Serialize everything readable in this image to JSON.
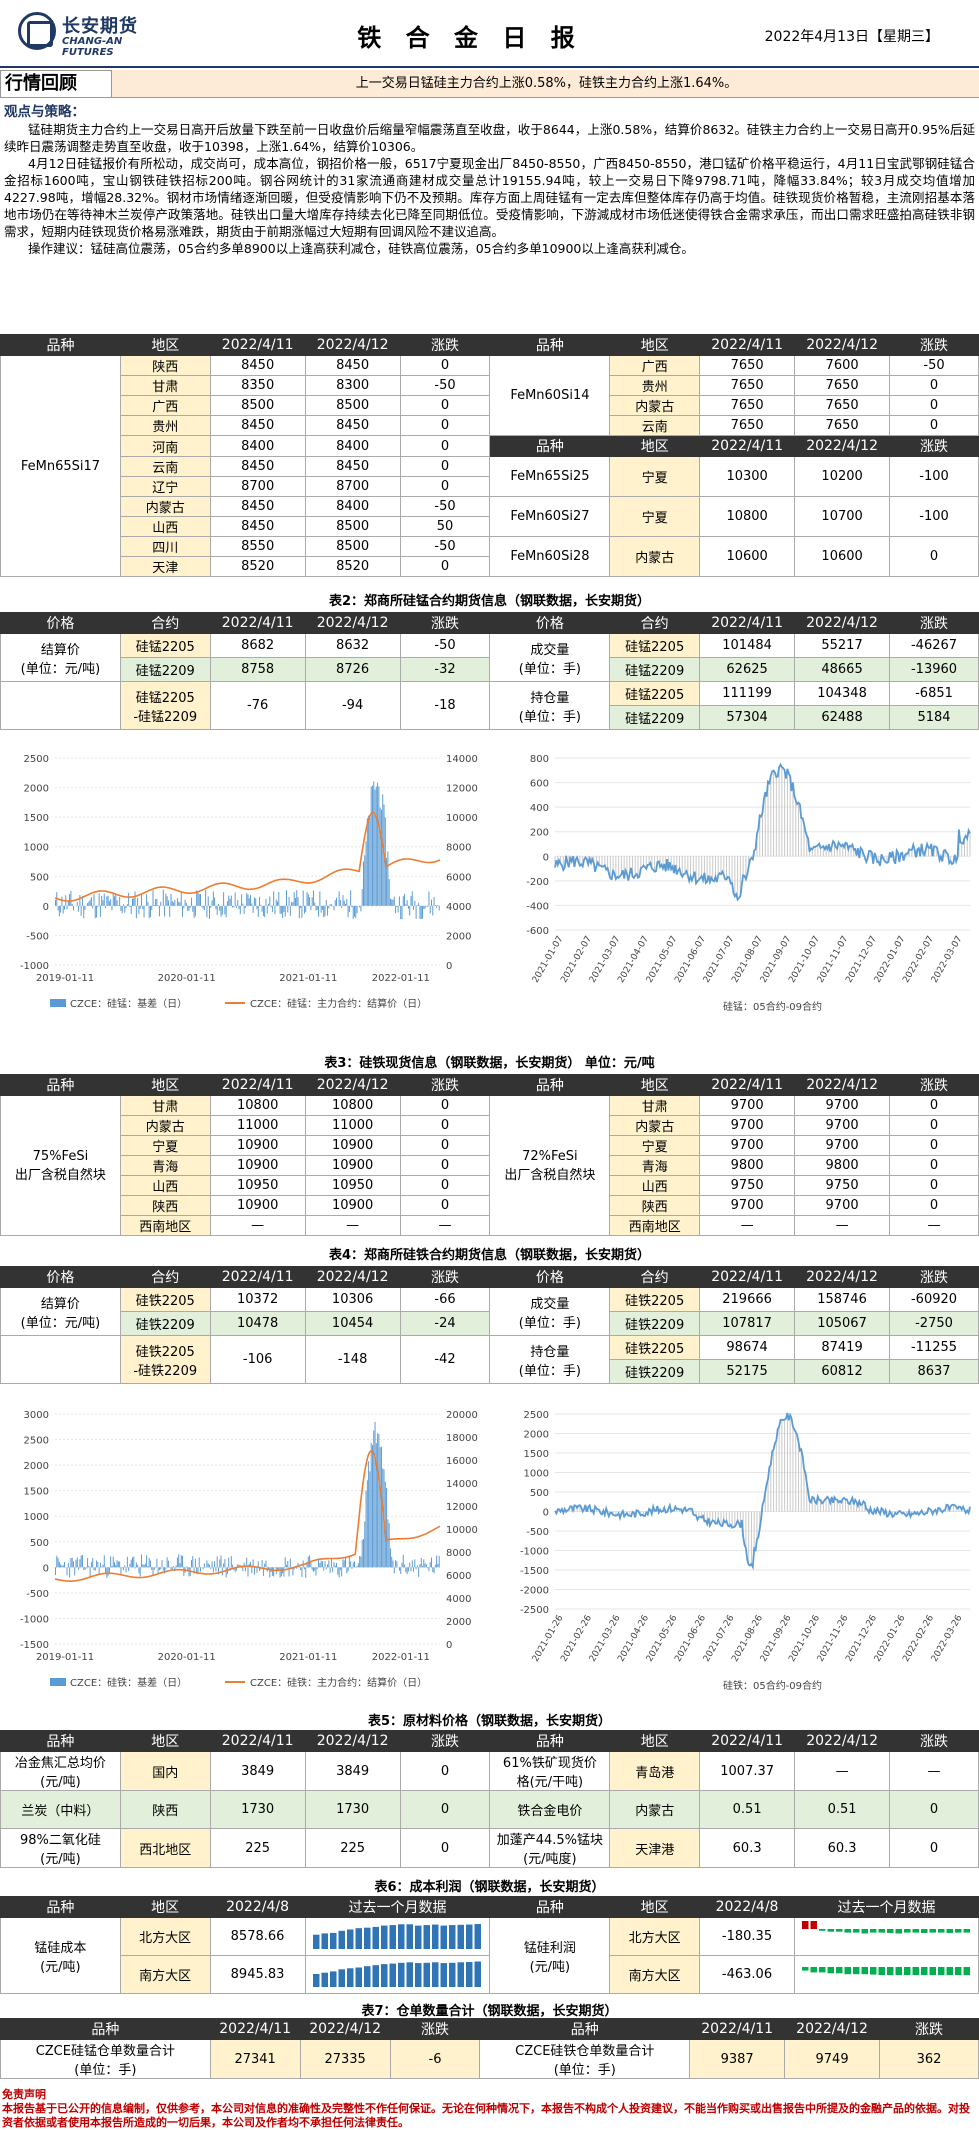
{
  "header": {
    "company_cn": "长安期货",
    "company_en": "CHANG-AN FUTURES",
    "title": "铁 合 金 日 报",
    "date": "2022年4月13日【星期三】"
  },
  "review": {
    "label": "行情回顾",
    "text": "上一交易日锰硅主力合约上涨0.58%，硅铁主力合约上涨1.64%。"
  },
  "strategy": {
    "title": "观点与策略：",
    "p1": "锰硅期货主力合约上一交易日高开后放量下跌至前一日收盘价后缩量窄幅震荡直至收盘，收于8644，上涨0.58%，结算价8632。硅铁主力合约上一交易日高开0.95%后延续昨日震荡调整走势直至收盘，收于10398，上涨1.64%，结算价10306。",
    "p2": "4月12日硅锰报价有所松动，成交尚可，成本高位，钢招价格一般，6517宁夏现金出厂8450-8550，广西8450-8550，港口锰矿价格平稳运行，4月11日宝武鄂钢硅锰合金招标1600吨，宝山钢铁硅铁招标200吨。钢谷网统计的31家流通商建材成交量总计19155.94吨，较上一交易日下降9798.71吨，降幅33.84%；较3月成交均值增加4227.98吨，增幅28.32%。钢材市场情绪逐渐回暖，但受疫情影响下仍不及预期。库存方面上周硅锰有一定去库但整体库存仍高于均值。硅铁现货价格暂稳，主流刚招基本落地市场仍在等待神木兰炭停产政策落地。硅铁出口量大增库存持续去化已降至同期低位。受疫情影响，下游減成材市场低迷使得铁合金需求承压，而出口需求旺盛拍高硅铁非钢需求，短期内硅铁现货价格易涨难跌，期货由于前期涨幅过大短期有回调风险不建议追高。",
    "p3": "操作建议：锰硅高位震荡，05合约多单8900以上逢高获利减仓，硅铁高位震荡，05合约多单10900以上逢高获利减仓。"
  },
  "table1": {
    "headers": [
      "品种",
      "地区",
      "2022/4/11",
      "2022/4/12",
      "涨跌",
      "品种",
      "地区",
      "2022/4/11",
      "2022/4/12",
      "涨跌"
    ],
    "left_product": "FeMn65Si17",
    "left_rows": [
      [
        "陕西",
        "8450",
        "8450",
        "0"
      ],
      [
        "甘肃",
        "8350",
        "8300",
        "-50"
      ],
      [
        "广西",
        "8500",
        "8500",
        "0"
      ],
      [
        "贵州",
        "8450",
        "8450",
        "0"
      ],
      [
        "河南",
        "8400",
        "8400",
        "0"
      ],
      [
        "云南",
        "8450",
        "8450",
        "0"
      ],
      [
        "辽宁",
        "8700",
        "8700",
        "0"
      ],
      [
        "内蒙古",
        "8450",
        "8400",
        "-50"
      ],
      [
        "山西",
        "8450",
        "8500",
        "50"
      ],
      [
        "四川",
        "8550",
        "8500",
        "-50"
      ],
      [
        "天津",
        "8520",
        "8520",
        "0"
      ]
    ],
    "right_product1": "FeMn60Si14",
    "right_rows1": [
      [
        "广西",
        "7650",
        "7600",
        "-50"
      ],
      [
        "贵州",
        "7650",
        "7650",
        "0"
      ],
      [
        "内蒙古",
        "7650",
        "7650",
        "0"
      ],
      [
        "云南",
        "7650",
        "7650",
        "0"
      ]
    ],
    "right_rows2": [
      [
        "FeMn65Si25",
        "宁夏",
        "10300",
        "10200",
        "-100"
      ],
      [
        "FeMn60Si27",
        "宁夏",
        "10800",
        "10700",
        "-100"
      ],
      [
        "FeMn60Si28",
        "内蒙古",
        "10600",
        "10600",
        "0"
      ]
    ]
  },
  "table2": {
    "title": "表2：郑商所硅锰合约期货信息（钢联数据，长安期货）",
    "headers": [
      "价格",
      "合约",
      "2022/4/11",
      "2022/4/12",
      "涨跌",
      "价格",
      "合约",
      "2022/4/11",
      "2022/4/12",
      "涨跌"
    ],
    "settle_label": "结算价\n(单位：元/吨)",
    "settle_rows": [
      [
        "硅锰2205",
        "8682",
        "8632",
        "-50"
      ],
      [
        "硅锰2209",
        "8758",
        "8726",
        "-32"
      ],
      [
        "硅锰2205\n-硅锰2209",
        "-76",
        "-94",
        "-18"
      ]
    ],
    "vol_label": "成交量\n(单位：手)",
    "vol_rows": [
      [
        "硅锰2205",
        "101484",
        "55217",
        "-46267"
      ],
      [
        "硅锰2209",
        "62625",
        "48665",
        "-13960"
      ]
    ],
    "oi_label": "持仓量\n(单位：手)",
    "oi_rows": [
      [
        "硅锰2205",
        "111199",
        "104348",
        "-6851"
      ],
      [
        "硅锰2209",
        "57304",
        "62488",
        "5184"
      ]
    ]
  },
  "chart1": {
    "left_yticks": [
      "2500",
      "2000",
      "1500",
      "1000",
      "500",
      "0",
      "-500",
      "-1000"
    ],
    "right_yticks": [
      "14000",
      "12000",
      "10000",
      "8000",
      "6000",
      "4000",
      "2000",
      "0"
    ],
    "xticks": [
      "2019-01-11",
      "2020-01-11",
      "2021-01-11",
      "2022-01-11"
    ],
    "legend1": "CZCE：硅锰：基差（日）",
    "legend2": "CZCE：硅锰：主力合约：结算价（日）"
  },
  "chart2": {
    "yticks": [
      "800",
      "600",
      "400",
      "200",
      "0",
      "-200",
      "-400",
      "-600"
    ],
    "xticks": [
      "2021-01-07",
      "2021-02-07",
      "2021-03-07",
      "2021-04-07",
      "2021-05-07",
      "2021-06-07",
      "2021-07-07",
      "2021-08-07",
      "2021-09-07",
      "2021-10-07",
      "2021-11-07",
      "2021-12-07",
      "2022-01-07",
      "2022-02-07",
      "2022-03-07"
    ],
    "caption": "硅锰：05合约-09合约"
  },
  "table3": {
    "title": "表3：硅铁现货信息（钢联数据，长安期货）  单位：元/吨",
    "headers": [
      "品种",
      "地区",
      "2022/4/11",
      "2022/4/12",
      "涨跌",
      "品种",
      "地区",
      "2022/4/11",
      "2022/4/12",
      "涨跌"
    ],
    "left_product": "75%FeSi\n出厂含税自然块",
    "left_rows": [
      [
        "甘肃",
        "10800",
        "10800",
        "0"
      ],
      [
        "内蒙古",
        "11000",
        "11000",
        "0"
      ],
      [
        "宁夏",
        "10900",
        "10900",
        "0"
      ],
      [
        "青海",
        "10900",
        "10900",
        "0"
      ],
      [
        "山西",
        "10950",
        "10950",
        "0"
      ],
      [
        "陕西",
        "10900",
        "10900",
        "0"
      ],
      [
        "西南地区",
        "—",
        "—",
        "—"
      ]
    ],
    "right_product": "72%FeSi\n出厂含税自然块",
    "right_rows": [
      [
        "甘肃",
        "9700",
        "9700",
        "0"
      ],
      [
        "内蒙古",
        "9700",
        "9700",
        "0"
      ],
      [
        "宁夏",
        "9700",
        "9700",
        "0"
      ],
      [
        "青海",
        "9800",
        "9800",
        "0"
      ],
      [
        "山西",
        "9750",
        "9750",
        "0"
      ],
      [
        "陕西",
        "9700",
        "9700",
        "0"
      ],
      [
        "西南地区",
        "—",
        "—",
        "—"
      ]
    ]
  },
  "table4": {
    "title": "表4：郑商所硅铁合约期货信息（钢联数据，长安期货）",
    "headers": [
      "价格",
      "合约",
      "2022/4/11",
      "2022/4/12",
      "涨跌",
      "价格",
      "合约",
      "2022/4/11",
      "2022/4/12",
      "涨跌"
    ],
    "settle_label": "结算价\n(单位：元/吨)",
    "settle_rows": [
      [
        "硅铁2205",
        "10372",
        "10306",
        "-66"
      ],
      [
        "硅铁2209",
        "10478",
        "10454",
        "-24"
      ],
      [
        "硅铁2205\n-硅铁2209",
        "-106",
        "-148",
        "-42"
      ]
    ],
    "vol_label": "成交量\n(单位：手)",
    "vol_rows": [
      [
        "硅铁2205",
        "219666",
        "158746",
        "-60920"
      ],
      [
        "硅铁2209",
        "107817",
        "105067",
        "-2750"
      ]
    ],
    "oi_label": "持仓量\n(单位：手)",
    "oi_rows": [
      [
        "硅铁2205",
        "98674",
        "87419",
        "-11255"
      ],
      [
        "硅铁2209",
        "52175",
        "60812",
        "8637"
      ]
    ]
  },
  "chart3": {
    "left_yticks": [
      "3000",
      "2500",
      "2000",
      "1500",
      "1000",
      "500",
      "0",
      "-500",
      "-1000",
      "-1500"
    ],
    "right_yticks": [
      "20000",
      "18000",
      "16000",
      "14000",
      "12000",
      "10000",
      "8000",
      "6000",
      "4000",
      "2000",
      "0"
    ],
    "xticks": [
      "2019-01-11",
      "2020-01-11",
      "2021-01-11",
      "2022-01-11"
    ],
    "legend1": "CZCE：硅铁：基差（日）",
    "legend2": "CZCE：硅铁：主力合约：结算价（日）"
  },
  "chart4": {
    "yticks": [
      "2500",
      "2000",
      "1500",
      "1000",
      "500",
      "0",
      "-500",
      "-1000",
      "-1500",
      "-2000",
      "-2500"
    ],
    "xticks": [
      "2021-01-26",
      "2021-02-26",
      "2021-03-26",
      "2021-04-26",
      "2021-05-26",
      "2021-06-26",
      "2021-07-26",
      "2021-08-26",
      "2021-09-26",
      "2021-10-26",
      "2021-11-26",
      "2021-12-26",
      "2022-01-26",
      "2022-02-26",
      "2022-03-26"
    ],
    "caption": "硅铁：05合约-09合约"
  },
  "table5": {
    "title": "表5：原材料价格（钢联数据，长安期货）",
    "headers": [
      "品种",
      "地区",
      "2022/4/11",
      "2022/4/12",
      "涨跌",
      "品种",
      "地区",
      "2022/4/11",
      "2022/4/12",
      "涨跌"
    ],
    "rows": [
      [
        "冶金焦汇总均价\n(元/吨)",
        "国内",
        "3849",
        "3849",
        "0",
        "61%铁矿现货价\n格(元/干吨)",
        "青岛港",
        "1007.37",
        "—",
        "—"
      ],
      [
        "兰炭（中料）",
        "陕西",
        "1730",
        "1730",
        "0",
        "铁合金电价",
        "内蒙古",
        "0.51",
        "0.51",
        "0"
      ],
      [
        "98%二氧化硅\n(元/吨)",
        "西北地区",
        "225",
        "225",
        "0",
        "加蓬产44.5%锰块\n(元/吨度)",
        "天津港",
        "60.3",
        "60.3",
        "0"
      ]
    ]
  },
  "table6": {
    "title": "表6：成本利润（钢联数据，长安期货）",
    "headers": [
      "品种",
      "地区",
      "2022/4/8",
      "过去一个月数据",
      "品种",
      "地区",
      "2022/4/8",
      "过去一个月数据"
    ],
    "cost_label": "锰硅成本\n(元/吨)",
    "cost_rows": [
      [
        "北方大区",
        "8578.66"
      ],
      [
        "南方大区",
        "8945.83"
      ]
    ],
    "profit_label": "锰硅利润\n(元/吨)",
    "profit_rows": [
      [
        "北方大区",
        "-180.35"
      ],
      [
        "南方大区",
        "-463.06"
      ]
    ]
  },
  "table7": {
    "title": "表7：仓单数量合计（钢联数据，长安期货）",
    "headers": [
      "品种",
      "2022/4/11",
      "2022/4/12",
      "涨跌",
      "品种",
      "2022/4/11",
      "2022/4/12",
      "涨跌"
    ],
    "row": [
      "CZCE硅锰仓单数量合计\n(单位：手)",
      "27341",
      "27335",
      "-6",
      "CZCE硅铁仓单数量合计\n(单位：手)",
      "9387",
      "9749",
      "362"
    ]
  },
  "disclaimer": {
    "title": "免责声明",
    "text": "本报告基于已公开的信息编制，仅供参考，本公司对信息的准确性及完整性不作任何保证。无论在何种情况下，本报告不构成个人投资建议，不能当作购买或出售报告中所提及的金融产品的依据。对投资者依据或者使用本报告所造成的一切后果，本公司及作者均不承担任何法律责任。"
  }
}
